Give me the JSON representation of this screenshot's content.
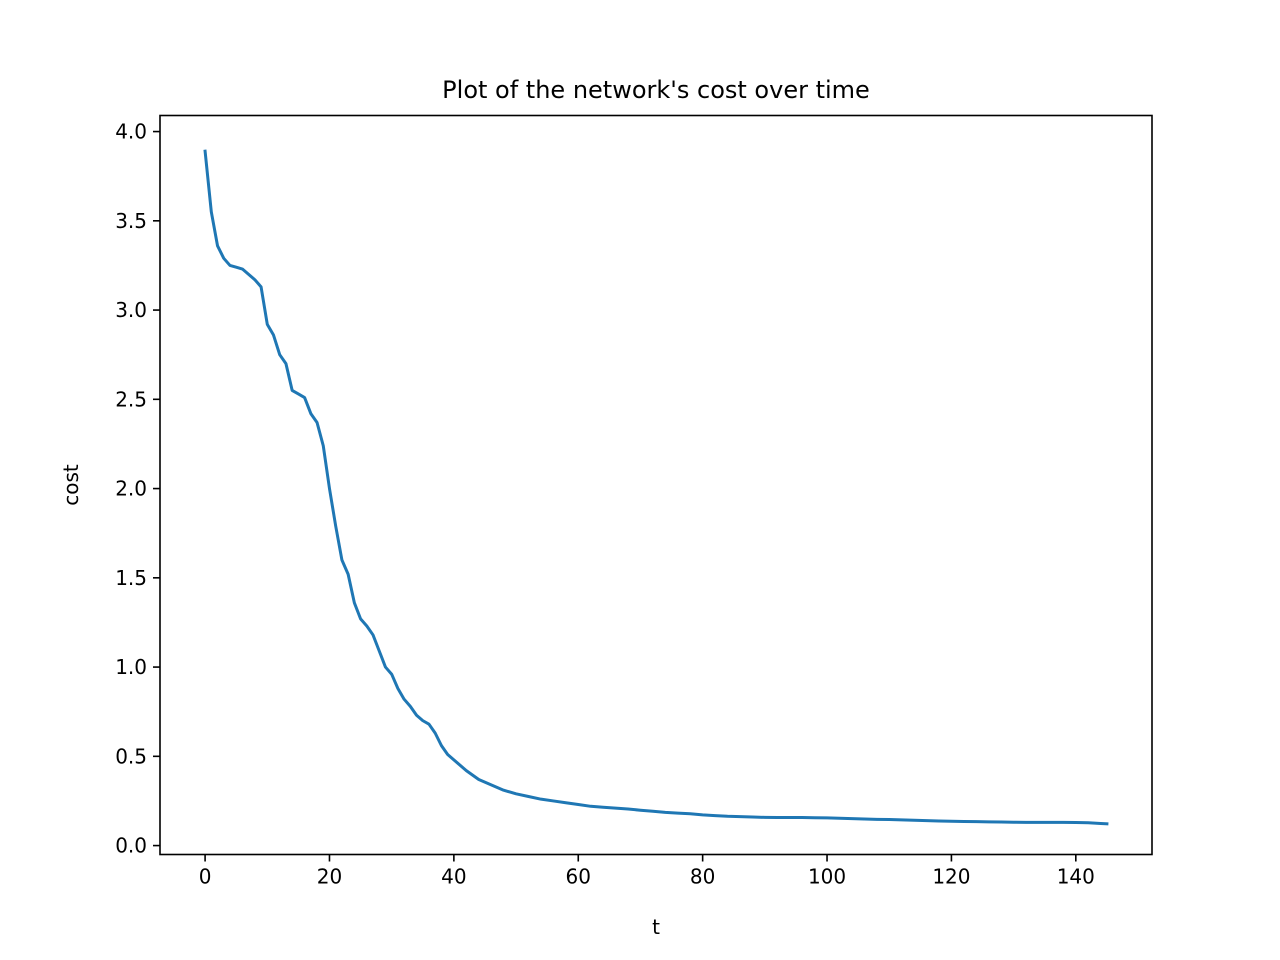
{
  "chart_data": {
    "type": "line",
    "title": "Plot of the network's cost over time",
    "xlabel": "t",
    "ylabel": "cost",
    "xlim": [
      -7.25,
      152.25
    ],
    "ylim": [
      -0.05,
      4.09
    ],
    "xticks": [
      0,
      20,
      40,
      60,
      80,
      100,
      120,
      140
    ],
    "yticks": [
      0.0,
      0.5,
      1.0,
      1.5,
      2.0,
      2.5,
      3.0,
      3.5,
      4.0
    ],
    "ytick_labels": [
      "0.0",
      "0.5",
      "1.0",
      "1.5",
      "2.0",
      "2.5",
      "3.0",
      "3.5",
      "4.0"
    ],
    "grid": false,
    "legend": "none",
    "series": [
      {
        "color": "#1f77b4",
        "x": [
          0,
          1,
          2,
          3,
          4,
          5,
          6,
          7,
          8,
          9,
          10,
          11,
          12,
          13,
          14,
          15,
          16,
          17,
          18,
          19,
          20,
          21,
          22,
          23,
          24,
          25,
          26,
          27,
          28,
          29,
          30,
          31,
          32,
          33,
          34,
          35,
          36,
          37,
          38,
          39,
          40,
          42,
          44,
          46,
          48,
          50,
          52,
          54,
          56,
          58,
          60,
          62,
          64,
          66,
          68,
          70,
          72,
          74,
          76,
          78,
          80,
          82,
          84,
          86,
          88,
          90,
          92,
          94,
          96,
          98,
          100,
          102,
          104,
          106,
          108,
          110,
          112,
          114,
          116,
          118,
          120,
          122,
          124,
          126,
          128,
          130,
          132,
          134,
          136,
          138,
          140,
          142,
          144,
          145
        ],
        "y": [
          3.89,
          3.55,
          3.36,
          3.29,
          3.25,
          3.24,
          3.23,
          3.2,
          3.17,
          3.13,
          2.92,
          2.86,
          2.75,
          2.7,
          2.55,
          2.53,
          2.51,
          2.42,
          2.37,
          2.24,
          2.0,
          1.79,
          1.6,
          1.52,
          1.36,
          1.27,
          1.23,
          1.18,
          1.09,
          1.0,
          0.96,
          0.88,
          0.82,
          0.78,
          0.73,
          0.7,
          0.68,
          0.63,
          0.56,
          0.51,
          0.48,
          0.42,
          0.37,
          0.34,
          0.31,
          0.29,
          0.275,
          0.26,
          0.25,
          0.24,
          0.23,
          0.22,
          0.215,
          0.21,
          0.205,
          0.198,
          0.192,
          0.186,
          0.182,
          0.178,
          0.172,
          0.168,
          0.164,
          0.162,
          0.16,
          0.158,
          0.157,
          0.157,
          0.157,
          0.156,
          0.155,
          0.153,
          0.151,
          0.149,
          0.147,
          0.146,
          0.144,
          0.142,
          0.14,
          0.138,
          0.136,
          0.135,
          0.134,
          0.133,
          0.132,
          0.131,
          0.13,
          0.13,
          0.13,
          0.13,
          0.129,
          0.128,
          0.124,
          0.122
        ]
      }
    ]
  }
}
